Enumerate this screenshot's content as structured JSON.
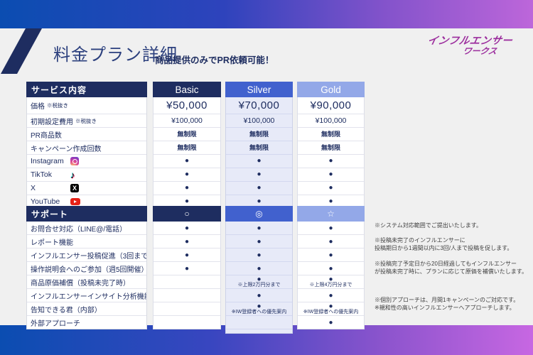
{
  "header": {
    "title": "料金プラン詳細",
    "subtitle": "商品提供のみでPR依頼可能！",
    "logo_line1": "インフルエンサー",
    "logo_line2": "ワークス"
  },
  "colors": {
    "navy": "#1e2d60",
    "silver_header": "#4161ce",
    "gold_header": "#93a8e8",
    "silver_tint": "#e7eaf8",
    "logo_purple": "#9c2e9e",
    "band_blue": "#0b4db1",
    "band_purple": "#c767e2"
  },
  "service_table": {
    "header": {
      "label": "サービス内容",
      "cols": [
        "Basic",
        "Silver",
        "Gold"
      ]
    },
    "rows": [
      {
        "label": "価格",
        "label_note": "※税抜き",
        "cells": [
          "¥50,000",
          "¥70,000",
          "¥90,000"
        ]
      },
      {
        "label": "初期設定費用",
        "label_note": "※税抜き",
        "cells": [
          "¥100,000",
          "¥100,000",
          "¥100,000"
        ]
      },
      {
        "label": "PR商品数",
        "cells": [
          "無制限",
          "無制限",
          "無制限"
        ]
      },
      {
        "label": "キャンペーン作成回数",
        "cells": [
          "無制限",
          "無制限",
          "無制限"
        ]
      },
      {
        "label": "Instagram",
        "icon": "instagram-icon",
        "cells": [
          "●",
          "●",
          "●"
        ]
      },
      {
        "label": "TikTok",
        "icon": "tiktok-icon",
        "tiktok_glyph": "♪",
        "cells": [
          "●",
          "●",
          "●"
        ]
      },
      {
        "label": "X",
        "icon": "x-icon",
        "x_glyph": "X",
        "cells": [
          "●",
          "●",
          "●"
        ]
      },
      {
        "label": "YouTube",
        "icon": "youtube-icon",
        "cells": [
          "●",
          "●",
          "●"
        ]
      }
    ]
  },
  "support_table": {
    "header": {
      "label": "サポート",
      "cols": [
        "○",
        "◎",
        "☆"
      ]
    },
    "rows": [
      {
        "label": "お問合せ対応（LINE@/電話）",
        "cells": [
          {
            "v": "●"
          },
          {
            "v": "●"
          },
          {
            "v": "●"
          }
        ]
      },
      {
        "label": "レポート機能",
        "cells": [
          {
            "v": "●"
          },
          {
            "v": "●"
          },
          {
            "v": "●"
          }
        ]
      },
      {
        "label": "インフルエンサー投稿促進（3回まで）",
        "cells": [
          {
            "v": "●"
          },
          {
            "v": "●"
          },
          {
            "v": "●"
          }
        ]
      },
      {
        "label": "操作説明会へのご参加（週5回開催）",
        "cells": [
          {
            "v": "●"
          },
          {
            "v": "●"
          },
          {
            "v": "●"
          }
        ]
      },
      {
        "label": "商品原価補償（投稿未完了時）",
        "cells": [
          {
            "v": ""
          },
          {
            "v": "●",
            "note": "※上限2万円分まで"
          },
          {
            "v": "●",
            "note": "※上限4万円分まで"
          }
        ]
      },
      {
        "label": "インフルエンサーインサイト分析機能",
        "cells": [
          {
            "v": ""
          },
          {
            "v": "●"
          },
          {
            "v": "●"
          }
        ]
      },
      {
        "label": "告知できる君（内部）",
        "cells": [
          {
            "v": ""
          },
          {
            "v": "●",
            "note": "※IW登録者への優先案内"
          },
          {
            "v": "●",
            "note": "※IW登録者への優先案内"
          }
        ]
      },
      {
        "label": "外部アプローチ",
        "cells": [
          {
            "v": ""
          },
          {
            "v": ""
          },
          {
            "v": "●"
          }
        ]
      }
    ]
  },
  "notes": [
    "※システム対応範囲でご提出いたします。",
    "※投稿未完了のインフルエンサーに\n投稿期日から1週間以内に3回/人まで投稿を促します。",
    "※投稿完了予定日から20日経過してもインフルエンサー\nが投稿未完了時に、プランに応じて原価を補償いたします。",
    "※個別アプローチは、月間1キャンペーンのご対応です。\n※親和性の高いインフルエンサーへアプローチします。"
  ]
}
